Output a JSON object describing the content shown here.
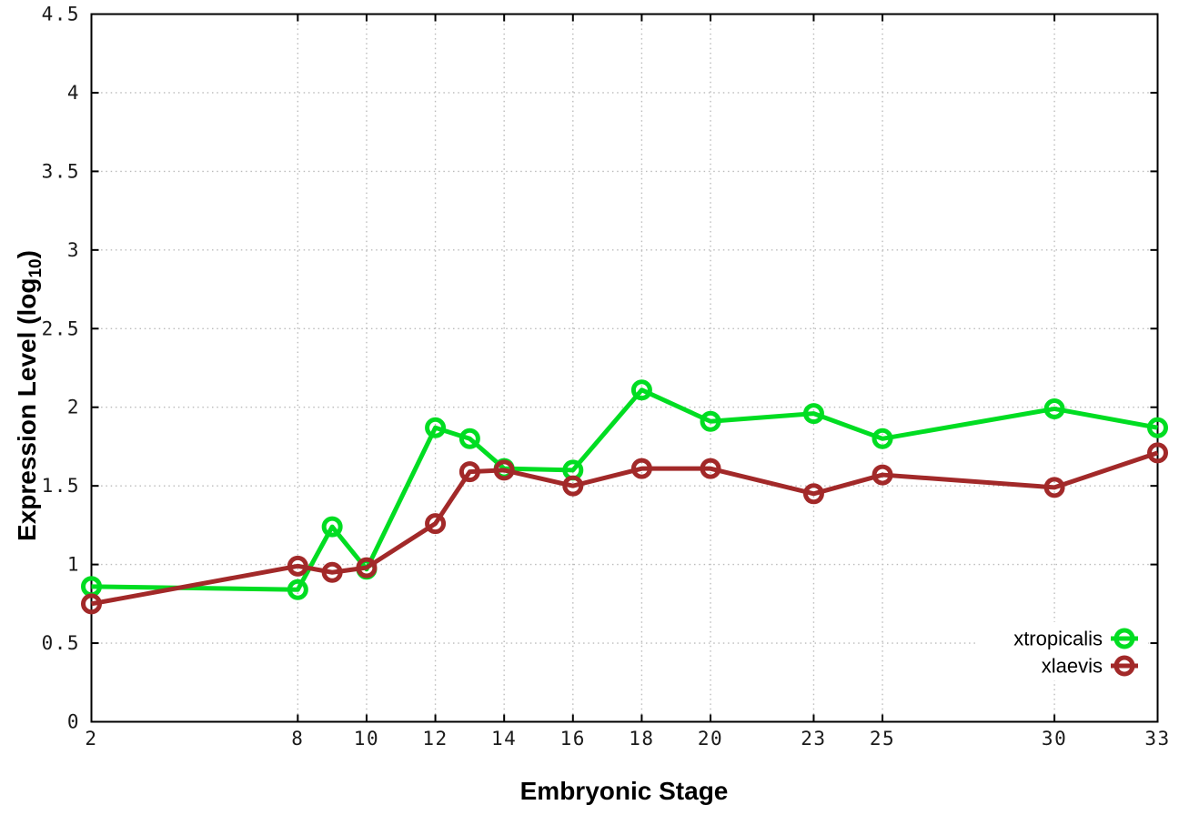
{
  "figure": {
    "xlabel": "Embryonic Stage",
    "ylabel_prefix": "Expression Level (log",
    "ylabel_sub": "10",
    "ylabel_suffix": ")"
  },
  "chart_data": {
    "type": "line",
    "title": "",
    "xlabel": "Embryonic Stage",
    "ylabel": "Expression Level (log10)",
    "x": [
      2,
      8,
      9,
      10,
      12,
      13,
      14,
      16,
      18,
      20,
      23,
      25,
      30,
      33
    ],
    "series": [
      {
        "name": "xtropicalis",
        "color": "#00dd22",
        "marker": "open-circle",
        "values": [
          0.86,
          0.84,
          1.24,
          0.97,
          1.87,
          1.8,
          1.61,
          1.6,
          2.11,
          1.91,
          1.96,
          1.8,
          1.99,
          1.87
        ]
      },
      {
        "name": "xlaevis",
        "color": "#a22929",
        "marker": "open-circle",
        "values": [
          0.75,
          0.99,
          0.95,
          0.98,
          1.26,
          1.59,
          1.6,
          1.5,
          1.61,
          1.61,
          1.45,
          1.57,
          1.49,
          1.71
        ]
      }
    ],
    "xlim": [
      2,
      33
    ],
    "ylim": [
      0,
      4.5
    ],
    "xticks": [
      2,
      8,
      10,
      12,
      14,
      16,
      18,
      20,
      23,
      25,
      30,
      33
    ],
    "yticks": [
      0,
      0.5,
      1,
      1.5,
      2,
      2.5,
      3,
      3.5,
      4,
      4.5
    ],
    "grid": true,
    "grid_style": "dotted",
    "grid_color": "#bbbbbb",
    "frame_color": "#000000",
    "background": "#ffffff",
    "tick_label_color": "#1a1a1a",
    "legend_position": "bottom-right",
    "legend_labels": [
      "xtropicalis",
      "xlaevis"
    ]
  }
}
